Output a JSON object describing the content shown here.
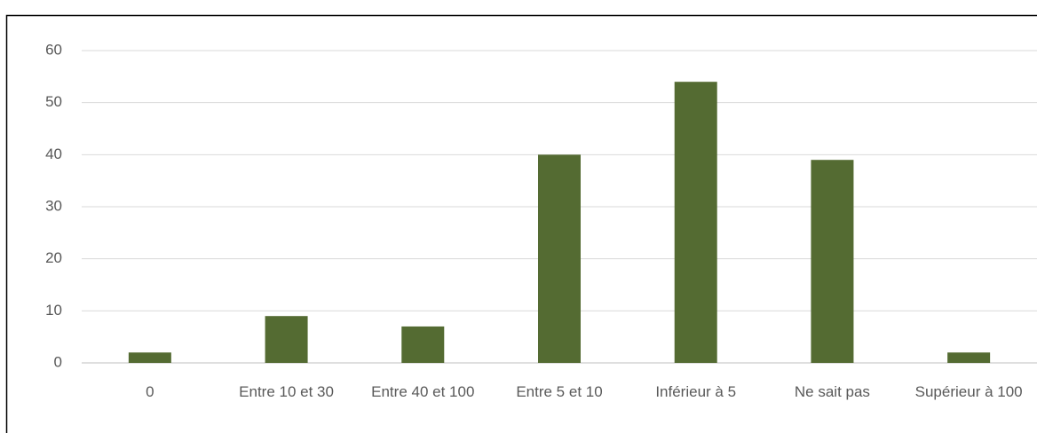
{
  "chart_data": {
    "type": "bar",
    "categories": [
      "0",
      "Entre 10 et 30",
      "Entre 40 et 100",
      "Entre 5 et 10",
      "Inférieur à 5",
      "Ne sait pas",
      "Supérieur à 100"
    ],
    "values": [
      2,
      9,
      7,
      40,
      54,
      39,
      2
    ],
    "color": "#546b32",
    "ylim": [
      0,
      60
    ],
    "yticks": [
      0,
      10,
      20,
      30,
      40,
      50,
      60
    ],
    "grid": true
  }
}
